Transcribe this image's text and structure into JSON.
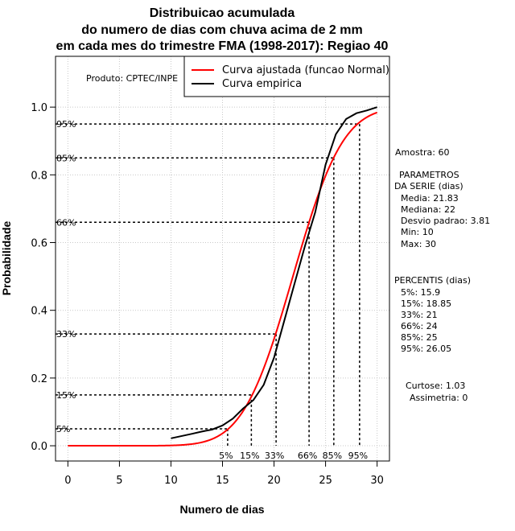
{
  "chart_data": {
    "type": "line",
    "title": [
      "Distribuicao acumulada",
      "do numero de dias com chuva acima de 2 mm",
      "em cada mes do trimestre FMA (1998-2017): Regiao 40"
    ],
    "xlabel": "Numero de dias",
    "ylabel": "Probabilidade",
    "xlim": [
      -1.2,
      31.2
    ],
    "ylim": [
      -0.045,
      1.15
    ],
    "xticks": [
      0,
      5,
      10,
      15,
      20,
      25,
      30
    ],
    "yticks": [
      0.0,
      0.2,
      0.4,
      0.6,
      0.8,
      1.0
    ],
    "xtick_labels": [
      "0",
      "5",
      "10",
      "15",
      "20",
      "25",
      "30"
    ],
    "ytick_labels": [
      "0.0",
      "0.2",
      "0.4",
      "0.6",
      "0.8",
      "1.0"
    ],
    "grid": true,
    "producer": "Produto: CPTEC/INPE",
    "legend": {
      "position": "top-right",
      "entries": [
        {
          "label": "Curva ajustada (funcao Normal)",
          "color": "#ff0000"
        },
        {
          "label": "Curva empirica",
          "color": "#000000"
        }
      ]
    },
    "normal_fit": {
      "mean": 21.83,
      "sd": 3.81,
      "x_range": [
        0,
        30
      ],
      "color": "#ff0000"
    },
    "series": [
      {
        "name": "Curva empirica",
        "color": "#000000",
        "x": [
          10,
          12,
          13,
          14,
          15,
          16,
          17,
          18,
          19,
          20,
          21,
          22,
          23,
          24,
          25,
          26,
          27,
          28,
          29,
          30
        ],
        "y": [
          0.022,
          0.035,
          0.042,
          0.048,
          0.06,
          0.08,
          0.11,
          0.135,
          0.18,
          0.26,
          0.37,
          0.48,
          0.59,
          0.69,
          0.83,
          0.92,
          0.965,
          0.982,
          0.99,
          1.0
        ]
      }
    ],
    "percentiles": [
      {
        "label": "5%",
        "prob": 0.05,
        "value": 15.9
      },
      {
        "label": "15%",
        "prob": 0.15,
        "value": 18.85
      },
      {
        "label": "33%",
        "prob": 0.33,
        "value": 21
      },
      {
        "label": "66%",
        "prob": 0.66,
        "value": 24
      },
      {
        "label": "85%",
        "prob": 0.85,
        "value": 25
      },
      {
        "label": "95%",
        "prob": 0.95,
        "value": 26.05
      }
    ],
    "percentile_markers": [
      {
        "label": "5%",
        "prob": 0.05,
        "x": 15.5
      },
      {
        "label": "15%",
        "prob": 0.15,
        "x": 17.8
      },
      {
        "label": "33%",
        "prob": 0.33,
        "x": 20.2
      },
      {
        "label": "66%",
        "prob": 0.66,
        "x": 23.4
      },
      {
        "label": "85%",
        "prob": 0.85,
        "x": 25.8
      },
      {
        "label": "95%",
        "prob": 0.95,
        "x": 28.3
      }
    ]
  },
  "sidebar": {
    "amostra": "Amostra: 60",
    "params_title_1": "PARAMETROS",
    "params_title_2": "DA SERIE (dias)",
    "params": [
      "Media: 21.83",
      "Mediana: 22",
      "Desvio padrao: 3.81",
      "Min: 10",
      "Max: 30"
    ],
    "percentis_title": "PERCENTIS (dias)",
    "percentis": [
      "5%: 15.9",
      "15%: 18.85",
      "33%: 21",
      "66%: 24",
      "85%: 25",
      "95%: 26.05"
    ],
    "curtose": "Curtose: 1.03",
    "assimetria": "Assimetria: 0"
  }
}
